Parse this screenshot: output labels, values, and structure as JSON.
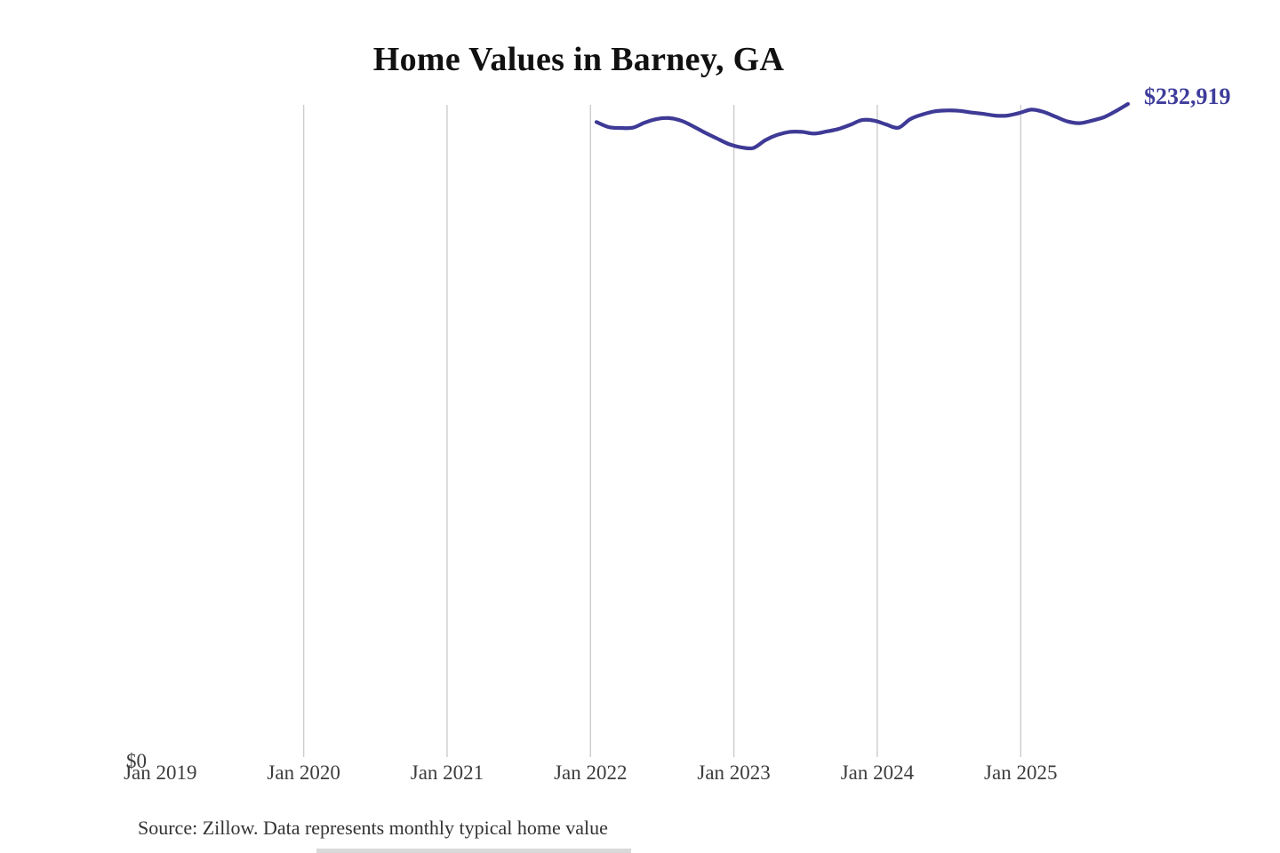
{
  "title": "Home Values in Barney, GA",
  "end_label": "$232,919",
  "source_note": "Source: Zillow. Data represents monthly typical home value",
  "colors": {
    "background": "#ffffff",
    "line": "#3e3a96",
    "end_label": "#3f3d9b",
    "gridline": "#cccccc",
    "axis_text": "#3d3d3d",
    "title_text": "#111111",
    "source_text": "#333333",
    "cropped_edge": "#d9d9d9"
  },
  "chart_data": {
    "type": "line",
    "title": "Home Values in Barney, GA",
    "series_name": "Monthly typical home value",
    "legend": "none",
    "grid": "vertical-only",
    "xlabel": "",
    "ylabel": "",
    "y_origin_label": "$0",
    "ylim": [
      0,
      233000
    ],
    "x_ticks": [
      "Jan 2019",
      "Jan 2020",
      "Jan 2021",
      "Jan 2022",
      "Jan 2023",
      "Jan 2024",
      "Jan 2025"
    ],
    "gridlines_at": [
      "Jan 2020",
      "Jan 2021",
      "Jan 2022",
      "Jan 2023",
      "Jan 2024",
      "Jan 2025"
    ],
    "final_value": 232919,
    "final_value_label": "$232,919",
    "months": [
      "Jan 2022",
      "Feb 2022",
      "Mar 2022",
      "Apr 2022",
      "May 2022",
      "Jun 2022",
      "Jul 2022",
      "Aug 2022",
      "Sep 2022",
      "Oct 2022",
      "Nov 2022",
      "Dec 2022",
      "Jan 2023",
      "Feb 2023",
      "Mar 2023",
      "Apr 2023",
      "May 2023",
      "Jun 2023",
      "Jul 2023",
      "Aug 2023",
      "Sep 2023",
      "Oct 2023",
      "Nov 2023",
      "Dec 2023",
      "Jan 2024",
      "Feb 2024",
      "Mar 2024",
      "Apr 2024",
      "May 2024",
      "Jun 2024",
      "Jul 2024",
      "Aug 2024",
      "Sep 2024",
      "Oct 2024",
      "Nov 2024",
      "Dec 2024",
      "Jan 2025",
      "Feb 2025",
      "Mar 2025",
      "Apr 2025",
      "May 2025",
      "Jun 2025",
      "Jul 2025",
      "Aug 2025",
      "Sep 2025"
    ],
    "values": [
      226500,
      224700,
      224400,
      224500,
      226300,
      227600,
      227900,
      227000,
      225000,
      222700,
      220600,
      218600,
      217500,
      217300,
      220100,
      222000,
      223000,
      223000,
      222400,
      223100,
      224000,
      225500,
      227200,
      227000,
      225600,
      224500,
      227600,
      229200,
      230300,
      230600,
      230500,
      229900,
      229400,
      228800,
      228800,
      229700,
      230900,
      230100,
      228400,
      226700,
      226100,
      227000,
      228200,
      230400,
      232919
    ]
  }
}
